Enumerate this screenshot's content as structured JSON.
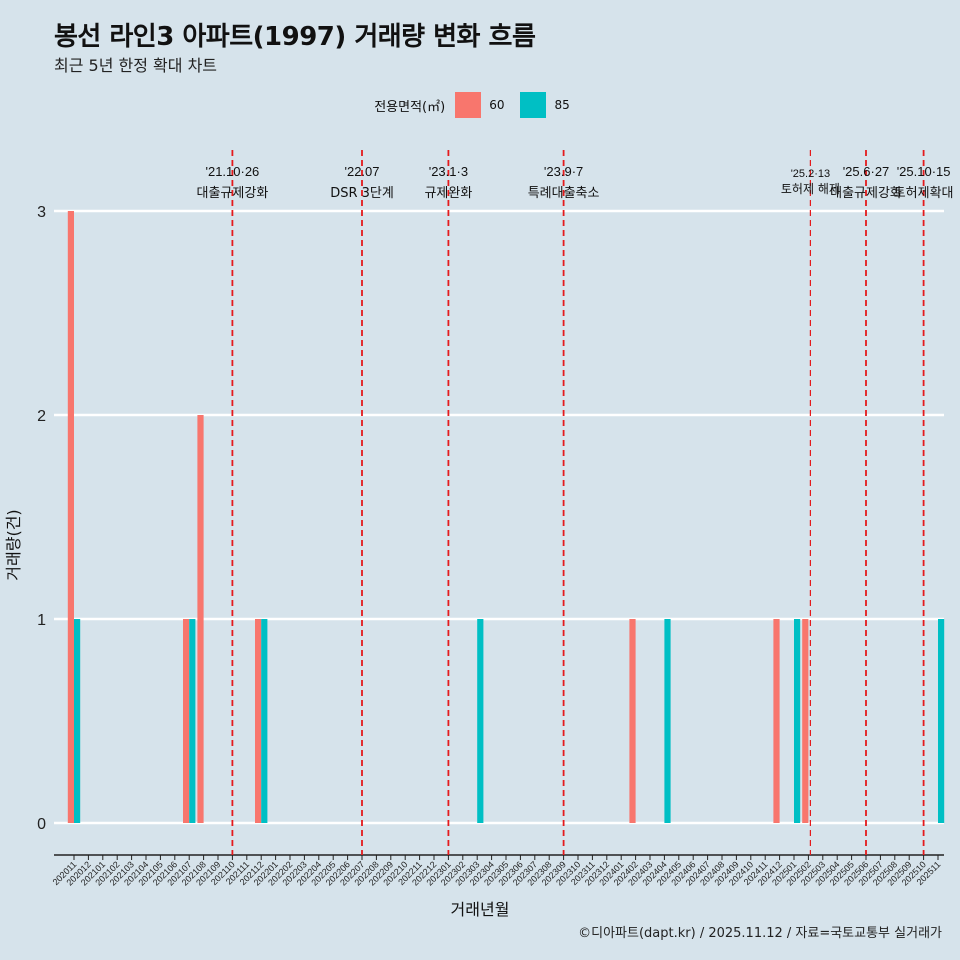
{
  "title": "봉선 라인3 아파트(1997) 거래량 변화 흐름",
  "subtitle": "최근 5년 한정 확대 차트",
  "legend": {
    "title": "전용면적(㎡)",
    "items": [
      {
        "label": "60",
        "color": "#f8766d"
      },
      {
        "label": "85",
        "color": "#00bfc4"
      }
    ]
  },
  "caption": "©디아파트(dapt.kr) / 2025.11.12 / 자료=국토교통부 실거래가",
  "chart_data": {
    "type": "bar",
    "title": "봉선 라인3 아파트(1997) 거래량 변화 흐름",
    "xlabel": "거래년월",
    "ylabel": "거래량(건)",
    "ylim": [
      0,
      3
    ],
    "yticks": [
      0,
      1,
      2,
      3
    ],
    "categories": [
      "202011",
      "202012",
      "202101",
      "202102",
      "202103",
      "202104",
      "202105",
      "202106",
      "202107",
      "202108",
      "202109",
      "202110",
      "202111",
      "202112",
      "202201",
      "202202",
      "202203",
      "202204",
      "202205",
      "202206",
      "202207",
      "202208",
      "202209",
      "202210",
      "202211",
      "202212",
      "202301",
      "202302",
      "202303",
      "202304",
      "202305",
      "202306",
      "202307",
      "202308",
      "202309",
      "202310",
      "202311",
      "202312",
      "202401",
      "202402",
      "202403",
      "202404",
      "202405",
      "202406",
      "202407",
      "202408",
      "202409",
      "202410",
      "202411",
      "202412",
      "202501",
      "202502",
      "202503",
      "202504",
      "202505",
      "202506",
      "202507",
      "202508",
      "202509",
      "202510",
      "202511"
    ],
    "series": [
      {
        "name": "60",
        "color": "#f8766d",
        "points": [
          {
            "x": "202011",
            "y": 3
          },
          {
            "x": "202107",
            "y": 1
          },
          {
            "x": "202108",
            "y": 2
          },
          {
            "x": "202112",
            "y": 1
          },
          {
            "x": "202402",
            "y": 1
          },
          {
            "x": "202412",
            "y": 1
          },
          {
            "x": "202502",
            "y": 1
          }
        ]
      },
      {
        "name": "85",
        "color": "#00bfc4",
        "points": [
          {
            "x": "202011",
            "y": 1
          },
          {
            "x": "202107",
            "y": 1
          },
          {
            "x": "202112",
            "y": 1
          },
          {
            "x": "202303",
            "y": 1
          },
          {
            "x": "202404",
            "y": 1
          },
          {
            "x": "202501",
            "y": 1
          },
          {
            "x": "202511",
            "y": 1
          }
        ]
      }
    ],
    "events": [
      {
        "x": "202110",
        "date": "'21.10·26",
        "label": "대출규제강화",
        "offset": 0.0
      },
      {
        "x": "202207",
        "date": "'22.07",
        "label": "DSR 3단계",
        "offset": 0.0
      },
      {
        "x": "202301",
        "date": "'23.1·3",
        "label": "규제완화",
        "offset": 0.0
      },
      {
        "x": "202309",
        "date": "'23.9·7",
        "label": "특례대출축소",
        "offset": 0.0
      },
      {
        "x": "202502",
        "date": "'25.2·13",
        "label": "토허제 해제",
        "offset": 0.4,
        "small": true
      },
      {
        "x": "202506",
        "date": "'25.6·27",
        "label": "대출규제강화",
        "offset": 0.0
      },
      {
        "x": "202510",
        "date": "'25.10·15",
        "label": "토허제확대",
        "offset": 0.0
      }
    ]
  }
}
